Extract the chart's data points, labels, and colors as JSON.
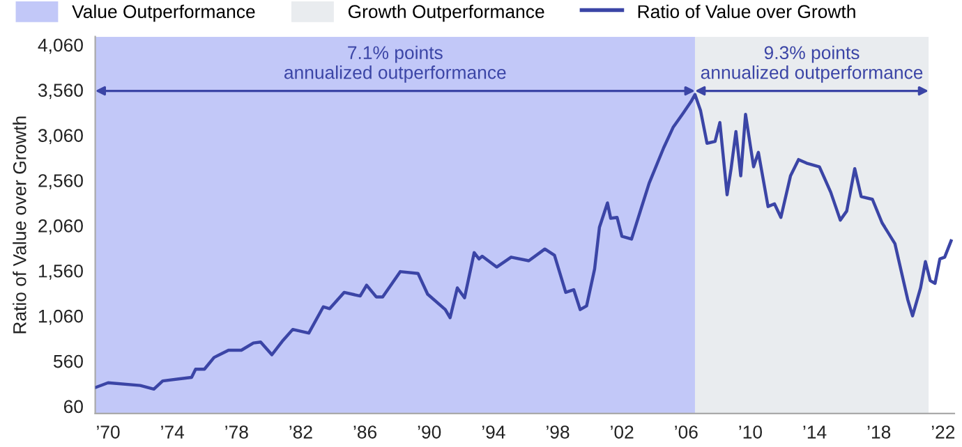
{
  "chart_data": {
    "type": "line",
    "ylabel": "Ratio of Value over Growth",
    "series": [
      {
        "name": "Ratio of Value over Growth",
        "color": "#3b45a6",
        "x": [
          1969.25,
          1970,
          1972,
          1972.85,
          1973.4,
          1975.2,
          1975.45,
          1976,
          1976.6,
          1977.5,
          1978.3,
          1979.05,
          1979.5,
          1980.2,
          1980.9,
          1981.5,
          1982.5,
          1983.4,
          1983.8,
          1984.7,
          1985.7,
          1986.1,
          1986.7,
          1987.1,
          1988.2,
          1989.3,
          1989.9,
          1991,
          1991.3,
          1991.75,
          1992.2,
          1992.8,
          1993.1,
          1993.3,
          1994.2,
          1995.1,
          1996.2,
          1997.2,
          1997.8,
          1998.5,
          1999,
          1999.4,
          1999.8,
          2000.3,
          2000.6,
          2001.1,
          2001.3,
          2001.7,
          2002,
          2002.6,
          2003.2,
          2003.7,
          2004.6,
          2005.2,
          2005.8,
          2006.3,
          2006.55,
          2006.9,
          2007.3,
          2007.8,
          2008.1,
          2008.55,
          2008.8,
          2009.1,
          2009.4,
          2009.7,
          2010.2,
          2010.5,
          2011.1,
          2011.5,
          2011.9,
          2012.5,
          2013,
          2013.5,
          2014.3,
          2015,
          2015.6,
          2016,
          2016.5,
          2016.9,
          2017.6,
          2018.2,
          2019,
          2019.8,
          2020.1,
          2020.6,
          2020.9,
          2021.2,
          2021.5,
          2021.8,
          2022.1,
          2022.5
        ],
        "values": [
          270,
          320,
          290,
          250,
          340,
          380,
          470,
          470,
          600,
          680,
          680,
          760,
          770,
          630,
          790,
          910,
          870,
          1160,
          1140,
          1320,
          1280,
          1400,
          1270,
          1270,
          1550,
          1530,
          1300,
          1130,
          1040,
          1370,
          1260,
          1760,
          1690,
          1720,
          1600,
          1710,
          1670,
          1800,
          1730,
          1320,
          1350,
          1130,
          1170,
          1580,
          2040,
          2310,
          2140,
          2150,
          1940,
          1910,
          2250,
          2530,
          2920,
          3150,
          3300,
          3430,
          3510,
          3330,
          2970,
          2990,
          3200,
          2400,
          2690,
          3100,
          2610,
          3290,
          2710,
          2870,
          2270,
          2300,
          2150,
          2610,
          2790,
          2750,
          2710,
          2430,
          2120,
          2220,
          2690,
          2380,
          2350,
          2090,
          1860,
          1240,
          1060,
          1370,
          1660,
          1450,
          1420,
          1690,
          1710,
          1890
        ]
      }
    ],
    "bands": [
      {
        "axis": "x",
        "from": 1969.2,
        "to": 2006.55,
        "label": "Value Outperformance",
        "color": "#c2c8f8"
      },
      {
        "axis": "x",
        "from": 2006.55,
        "to": 2021.1,
        "label": "Growth Outperformance",
        "color": "#e9ecef"
      }
    ],
    "annotations": [
      "7.1% points\nannualized outperformance",
      "9.3% points\nannualized outperformance"
    ],
    "xlim": [
      1969.2,
      2022.7
    ],
    "ylim": [
      -20,
      4150
    ],
    "xticks": [
      {
        "value": 1970,
        "label": "’70"
      },
      {
        "value": 1974,
        "label": "’74"
      },
      {
        "value": 1978,
        "label": "’78"
      },
      {
        "value": 1982,
        "label": "’82"
      },
      {
        "value": 1986,
        "label": "’86"
      },
      {
        "value": 1990,
        "label": "’90"
      },
      {
        "value": 1994,
        "label": "’94"
      },
      {
        "value": 1998,
        "label": "’98"
      },
      {
        "value": 2002,
        "label": "’02"
      },
      {
        "value": 2006,
        "label": "’06"
      },
      {
        "value": 2010,
        "label": "’10"
      },
      {
        "value": 2014,
        "label": "’14"
      },
      {
        "value": 2018,
        "label": "’18"
      },
      {
        "value": 2022,
        "label": "’22"
      }
    ],
    "yticks": [
      {
        "value": 60,
        "label": "60"
      },
      {
        "value": 560,
        "label": "560"
      },
      {
        "value": 1060,
        "label": "1,060"
      },
      {
        "value": 1560,
        "label": "1,560"
      },
      {
        "value": 2060,
        "label": "2,060"
      },
      {
        "value": 2560,
        "label": "2,560"
      },
      {
        "value": 3060,
        "label": "3,060"
      },
      {
        "value": 3560,
        "label": "3,560"
      },
      {
        "value": 4060,
        "label": "4,060"
      }
    ],
    "grid": false,
    "legend": "top"
  }
}
